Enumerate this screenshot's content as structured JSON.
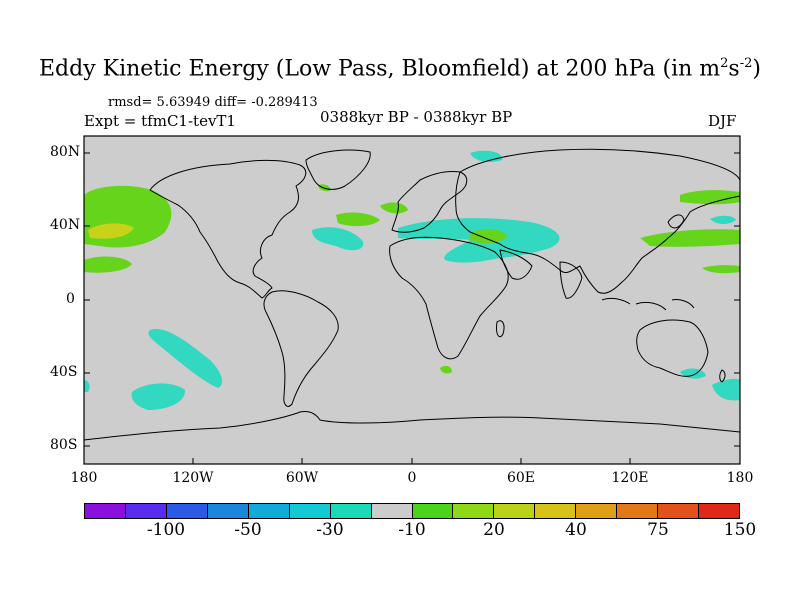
{
  "title": {
    "text": "Eddy Kinetic Energy (Low Pass, Bloomfield) at 200 hPa (in m",
    "sup1": "2",
    "mid": "s",
    "sup2": "-2",
    "end": ")"
  },
  "stats": "rmsd= 5.63949 diff= -0.289413",
  "expt": "Expt = tfmC1-tevT1",
  "period": "0388kyr BP - 0388kyr BP",
  "season": "DJF",
  "y_ticks": [
    "80N",
    "40N",
    "0",
    "40S",
    "80S"
  ],
  "x_ticks": [
    "180",
    "120W",
    "60W",
    "0",
    "60E",
    "120E",
    "180"
  ],
  "colorbar": {
    "colors": [
      "#8a10e0",
      "#5a2cf0",
      "#2a5ae6",
      "#1a86dc",
      "#12aad8",
      "#14c8d4",
      "#1cd9b8",
      "#cccccc",
      "#4cd41c",
      "#8ed818",
      "#bcd21a",
      "#d8c21a",
      "#dea019",
      "#e2781a",
      "#e4521c",
      "#e02818"
    ],
    "labels": [
      "-100",
      "-50",
      "-30",
      "-10",
      "20",
      "40",
      "75",
      "150"
    ]
  },
  "colors": {
    "land_bg": "#cdcdcd",
    "teal": "#33d8c0",
    "green": "#66d41a",
    "yellow": "#c8d218"
  }
}
